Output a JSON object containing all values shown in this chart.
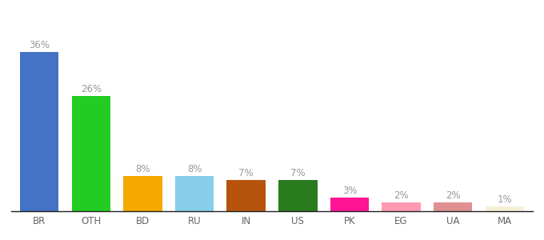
{
  "categories": [
    "BR",
    "OTH",
    "BD",
    "RU",
    "IN",
    "US",
    "PK",
    "EG",
    "UA",
    "MA"
  ],
  "values": [
    36,
    26,
    8,
    8,
    7,
    7,
    3,
    2,
    2,
    1
  ],
  "bar_colors": [
    "#4472c4",
    "#22cc22",
    "#f5a800",
    "#87ceeb",
    "#b5530d",
    "#2a7a1e",
    "#ff1493",
    "#ff9ab0",
    "#e09090",
    "#f5f0d8"
  ],
  "background_color": "#ffffff",
  "label_fontsize": 8.5,
  "tick_fontsize": 8.5,
  "label_color": "#999999",
  "tick_color": "#666666"
}
